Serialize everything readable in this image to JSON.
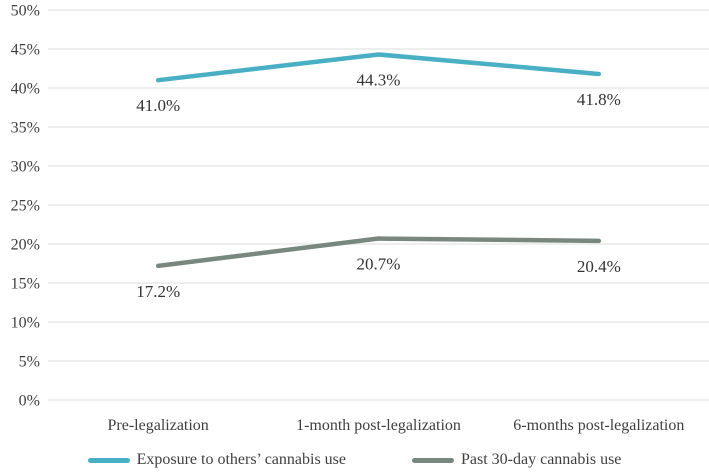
{
  "chart_data": {
    "type": "line",
    "title": "",
    "categories": [
      "Pre-legalization",
      "1-month post-legalization",
      "6-months post-legalization"
    ],
    "series": [
      {
        "name": "Exposure to others’ cannabis use",
        "values": [
          41.0,
          44.3,
          41.8
        ],
        "point_labels": [
          "41.0%",
          "44.3%",
          "41.8%"
        ],
        "color": "#49AFC4"
      },
      {
        "name": "Past 30-day cannabis use",
        "values": [
          17.2,
          20.7,
          20.4
        ],
        "point_labels": [
          "17.2%",
          "20.7%",
          "20.4%"
        ],
        "color": "#78887F"
      }
    ],
    "y_axis": {
      "min": 0,
      "max": 50,
      "step": 5,
      "tick_labels": [
        "0%",
        "5%",
        "10%",
        "15%",
        "20%",
        "25%",
        "30%",
        "35%",
        "40%",
        "45%",
        "50%"
      ]
    },
    "x_axis": {
      "label": ""
    },
    "grid": true,
    "legend_position": "bottom",
    "styles": {
      "gridline_color": "#e3e3e3",
      "axis_text_color": "#3f3f3f",
      "data_label_color": "#333333",
      "background": "#ffffff"
    }
  }
}
